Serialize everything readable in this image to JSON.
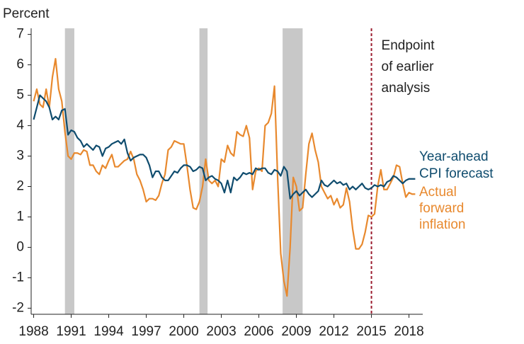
{
  "chart_data": {
    "type": "line",
    "y_label": "Percent",
    "annotation": [
      "Endpoint",
      "of earlier",
      "analysis"
    ],
    "endpoint_x": 2015.0,
    "recessions": [
      [
        1990.5,
        1991.25
      ],
      [
        2001.25,
        2001.9
      ],
      [
        2007.9,
        2009.5
      ]
    ],
    "recession_color": "#c8c8c8",
    "x": [
      1988,
      1988.25,
      1988.5,
      1988.75,
      1989,
      1989.25,
      1989.5,
      1989.75,
      1990,
      1990.25,
      1990.5,
      1990.75,
      1991,
      1991.25,
      1991.5,
      1991.75,
      1992,
      1992.25,
      1992.5,
      1992.75,
      1993,
      1993.25,
      1993.5,
      1993.75,
      1994,
      1994.25,
      1994.5,
      1994.75,
      1995,
      1995.25,
      1995.5,
      1995.75,
      1996,
      1996.25,
      1996.5,
      1996.75,
      1997,
      1997.25,
      1997.5,
      1997.75,
      1998,
      1998.25,
      1998.5,
      1998.75,
      1999,
      1999.25,
      1999.5,
      1999.75,
      2000,
      2000.25,
      2000.5,
      2000.75,
      2001,
      2001.25,
      2001.5,
      2001.75,
      2002,
      2002.25,
      2002.5,
      2002.75,
      2003,
      2003.25,
      2003.5,
      2003.75,
      2004,
      2004.25,
      2004.5,
      2004.75,
      2005,
      2005.25,
      2005.5,
      2005.75,
      2006,
      2006.25,
      2006.5,
      2006.75,
      2007,
      2007.25,
      2007.5,
      2007.75,
      2008,
      2008.25,
      2008.5,
      2008.75,
      2009,
      2009.25,
      2009.5,
      2009.75,
      2010,
      2010.25,
      2010.5,
      2010.75,
      2011,
      2011.25,
      2011.5,
      2011.75,
      2012,
      2012.25,
      2012.5,
      2012.75,
      2013,
      2013.25,
      2013.5,
      2013.75,
      2014,
      2014.25,
      2014.5,
      2014.75,
      2015,
      2015.25,
      2015.5,
      2015.75,
      2016,
      2016.25,
      2016.5,
      2016.75,
      2017,
      2017.25,
      2017.5,
      2017.75,
      2018,
      2018.25,
      2018.5
    ],
    "series": [
      {
        "name": [
          "Year-ahead",
          "CPI forecast"
        ],
        "color": "#0f4c6e",
        "values": [
          4.2,
          4.6,
          5.0,
          4.9,
          4.8,
          4.6,
          4.2,
          4.3,
          4.2,
          4.5,
          4.55,
          3.7,
          3.85,
          3.8,
          3.6,
          3.5,
          3.3,
          3.4,
          3.3,
          3.2,
          3.35,
          3.3,
          3.0,
          3.25,
          3.3,
          3.4,
          3.45,
          3.5,
          3.4,
          3.55,
          3.1,
          2.85,
          2.95,
          3.0,
          3.05,
          3.05,
          2.95,
          2.7,
          2.3,
          2.5,
          2.5,
          2.3,
          2.2,
          2.2,
          2.35,
          2.5,
          2.45,
          2.6,
          2.7,
          2.7,
          2.65,
          2.5,
          2.55,
          2.65,
          2.6,
          2.2,
          2.3,
          2.35,
          2.25,
          2.2,
          2.1,
          1.8,
          2.2,
          1.8,
          2.3,
          2.2,
          2.3,
          2.45,
          2.4,
          2.45,
          2.4,
          2.6,
          2.55,
          2.6,
          2.6,
          2.45,
          2.4,
          2.55,
          2.5,
          2.35,
          2.65,
          2.5,
          1.6,
          1.75,
          1.85,
          1.7,
          1.8,
          1.9,
          1.75,
          1.65,
          1.75,
          1.85,
          2.2,
          2.05,
          2.0,
          2.1,
          2.2,
          2.1,
          2.15,
          2.05,
          2.1,
          1.9,
          2.0,
          1.9,
          2.0,
          2.1,
          1.95,
          1.9,
          1.95,
          2.05,
          2.0,
          2.05,
          2.0,
          2.15,
          2.2,
          2.35,
          2.3,
          2.2,
          2.1,
          2.2,
          2.25,
          2.25,
          2.25
        ]
      },
      {
        "name": [
          "Actual",
          "forward",
          "inflation"
        ],
        "color": "#e8892e",
        "values": [
          4.8,
          5.2,
          4.7,
          4.6,
          5.2,
          4.6,
          5.6,
          6.2,
          5.2,
          4.8,
          3.8,
          3.0,
          2.9,
          3.1,
          3.1,
          3.05,
          3.2,
          3.15,
          2.7,
          2.7,
          2.5,
          2.4,
          2.7,
          2.6,
          2.85,
          3.05,
          2.65,
          2.65,
          2.75,
          2.85,
          2.9,
          3.15,
          2.9,
          2.4,
          2.2,
          1.9,
          1.5,
          1.6,
          1.6,
          1.55,
          1.7,
          2.1,
          2.4,
          3.2,
          3.3,
          3.5,
          3.45,
          3.4,
          3.4,
          2.7,
          1.9,
          1.3,
          1.25,
          1.5,
          2.0,
          2.9,
          2.2,
          2.1,
          2.2,
          2.0,
          2.9,
          2.8,
          3.35,
          3.1,
          3.0,
          3.8,
          3.7,
          3.65,
          4.0,
          3.6,
          1.9,
          2.5,
          2.6,
          2.5,
          4.0,
          4.1,
          4.4,
          5.3,
          2.3,
          -0.2,
          -1.1,
          -1.6,
          0.0,
          2.3,
          2.0,
          1.2,
          1.3,
          2.4,
          3.4,
          3.75,
          3.2,
          2.8,
          2.0,
          1.8,
          1.6,
          1.7,
          1.4,
          1.6,
          1.3,
          1.4,
          1.95,
          1.5,
          0.6,
          -0.05,
          -0.05,
          0.1,
          0.5,
          1.05,
          1.0,
          1.1,
          2.0,
          2.55,
          1.9,
          1.9,
          2.1,
          2.3,
          2.7,
          2.65,
          2.1,
          1.65,
          1.8,
          1.75,
          1.75
        ]
      }
    ],
    "xlim": [
      1987.8,
      2019.1
    ],
    "xticks": [
      1988,
      1991,
      1994,
      1997,
      2000,
      2003,
      2006,
      2009,
      2012,
      2015,
      2018
    ],
    "ylim": [
      -2.2,
      7.2
    ],
    "yticks": [
      -2,
      -1,
      0,
      1,
      2,
      3,
      4,
      5,
      6,
      7
    ]
  }
}
